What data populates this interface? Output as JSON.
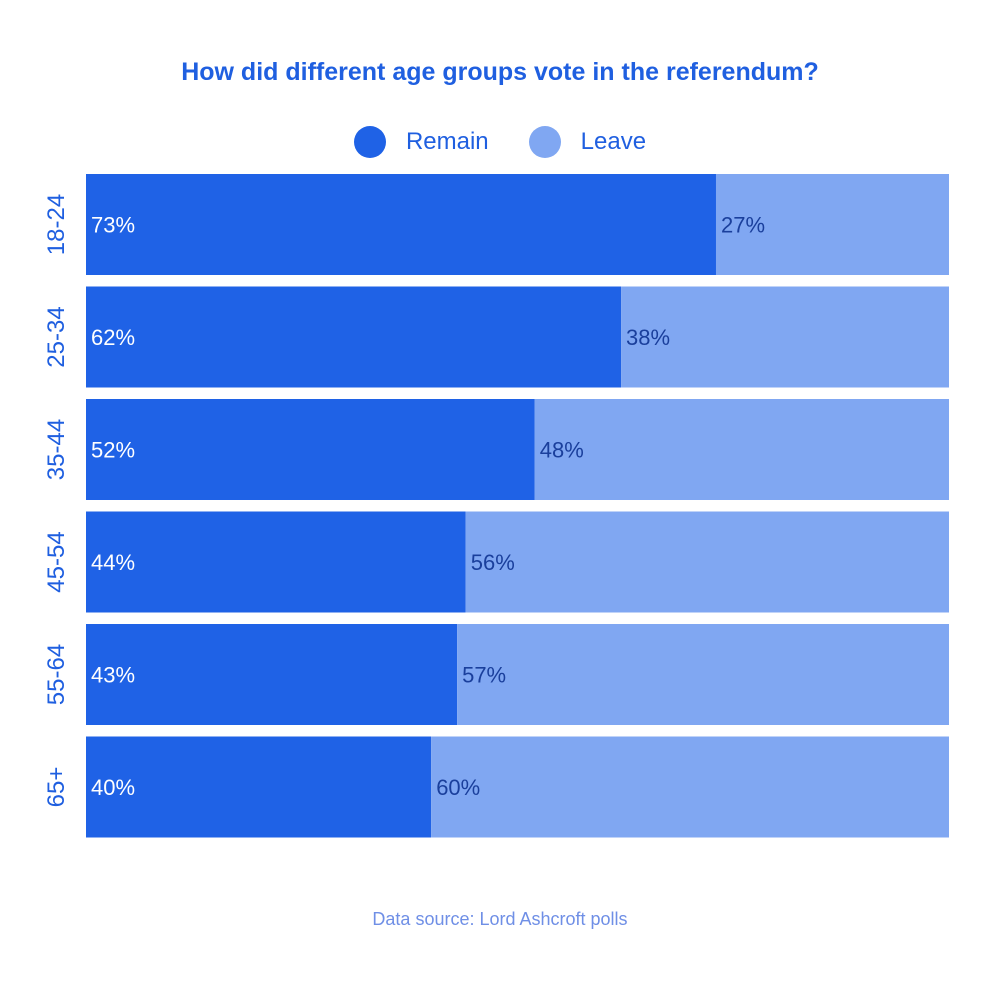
{
  "chart_data": {
    "type": "bar",
    "orientation": "horizontal",
    "stacked": true,
    "title": "How did different age groups vote in the referendum?",
    "categories": [
      "18-24",
      "25-34",
      "35-44",
      "45-54",
      "55-64",
      "65+"
    ],
    "series": [
      {
        "name": "Remain",
        "color": "#1f62e6",
        "values": [
          73,
          62,
          52,
          44,
          43,
          40
        ],
        "labels": [
          "73%",
          "62%",
          "52%",
          "44%",
          "43%",
          "40%"
        ]
      },
      {
        "name": "Leave",
        "color": "#80a7f2",
        "values": [
          27,
          38,
          48,
          56,
          57,
          60
        ],
        "labels": [
          "27%",
          "38%",
          "48%",
          "56%",
          "57%",
          "60%"
        ]
      }
    ],
    "xlim": [
      0,
      100
    ],
    "legend_position": "top-center",
    "grid": false
  },
  "source": "Data source: Lord Ashcroft polls",
  "colors": {
    "title": "#1f5fe0",
    "category_label": "#1f5fe0",
    "remain_label_text": "#ffffff",
    "leave_label_text": "#1a3f9c",
    "source_text": "#6f8fe6"
  }
}
